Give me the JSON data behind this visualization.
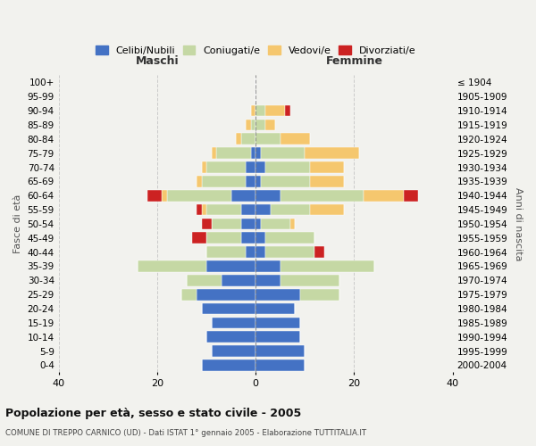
{
  "age_groups": [
    "0-4",
    "5-9",
    "10-14",
    "15-19",
    "20-24",
    "25-29",
    "30-34",
    "35-39",
    "40-44",
    "45-49",
    "50-54",
    "55-59",
    "60-64",
    "65-69",
    "70-74",
    "75-79",
    "80-84",
    "85-89",
    "90-94",
    "95-99",
    "100+"
  ],
  "birth_years": [
    "2000-2004",
    "1995-1999",
    "1990-1994",
    "1985-1989",
    "1980-1984",
    "1975-1979",
    "1970-1974",
    "1965-1969",
    "1960-1964",
    "1955-1959",
    "1950-1954",
    "1945-1949",
    "1940-1944",
    "1935-1939",
    "1930-1934",
    "1925-1929",
    "1920-1924",
    "1915-1919",
    "1910-1914",
    "1905-1909",
    "≤ 1904"
  ],
  "colors": {
    "celibi": "#4472c4",
    "coniugati": "#c5d8a4",
    "vedovi": "#f5c76e",
    "divorziati": "#cc2222"
  },
  "maschi": {
    "celibi": [
      11,
      9,
      10,
      9,
      11,
      12,
      7,
      10,
      2,
      3,
      3,
      3,
      5,
      2,
      2,
      1,
      0,
      0,
      0,
      0,
      0
    ],
    "coniugati": [
      0,
      0,
      0,
      0,
      0,
      3,
      7,
      14,
      8,
      7,
      6,
      7,
      13,
      9,
      8,
      7,
      3,
      1,
      0,
      0,
      0
    ],
    "vedovi": [
      0,
      0,
      0,
      0,
      0,
      0,
      0,
      0,
      0,
      0,
      0,
      1,
      1,
      1,
      1,
      1,
      1,
      1,
      1,
      0,
      0
    ],
    "divorziati": [
      0,
      0,
      0,
      0,
      0,
      0,
      0,
      0,
      0,
      3,
      2,
      1,
      3,
      0,
      0,
      0,
      0,
      0,
      0,
      0,
      0
    ]
  },
  "femmine": {
    "celibi": [
      10,
      10,
      9,
      9,
      8,
      9,
      5,
      5,
      2,
      2,
      1,
      3,
      5,
      1,
      2,
      1,
      0,
      0,
      0,
      0,
      0
    ],
    "coniugati": [
      0,
      0,
      0,
      0,
      0,
      8,
      12,
      19,
      10,
      10,
      6,
      8,
      17,
      10,
      9,
      9,
      5,
      2,
      2,
      0,
      0
    ],
    "vedovi": [
      0,
      0,
      0,
      0,
      0,
      0,
      0,
      0,
      0,
      0,
      1,
      7,
      8,
      7,
      7,
      11,
      6,
      2,
      4,
      0,
      0
    ],
    "divorziati": [
      0,
      0,
      0,
      0,
      0,
      0,
      0,
      0,
      2,
      0,
      0,
      0,
      3,
      0,
      0,
      0,
      0,
      0,
      1,
      0,
      0
    ]
  },
  "xlim": 40,
  "title": "Popolazione per età, sesso e stato civile - 2005",
  "subtitle": "COMUNE DI TREPPO CARNICO (UD) - Dati ISTAT 1° gennaio 2005 - Elaborazione TUTTITALIA.IT",
  "ylabel_left": "Fasce di età",
  "ylabel_right": "Anni di nascita",
  "xlabel_left": "Maschi",
  "xlabel_right": "Femmine"
}
